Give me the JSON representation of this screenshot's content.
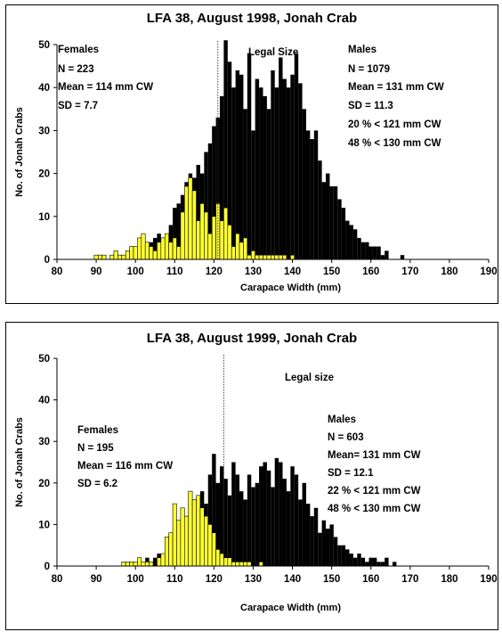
{
  "chart_data": [
    {
      "type": "bar",
      "title": "LFA 38, August 1998, Jonah Crab",
      "xlabel": "Carapace Width (mm)",
      "ylabel": "No. of Jonah Crabs",
      "xlim": [
        80,
        190
      ],
      "ylim": [
        0,
        50
      ],
      "xticks": [
        80,
        90,
        100,
        110,
        120,
        130,
        140,
        150,
        160,
        170,
        180,
        190
      ],
      "yticks": [
        0,
        10,
        20,
        30,
        40,
        50
      ],
      "legal_size_mm": 121,
      "legal_label": "Legal Size",
      "females_notes": [
        "Females",
        "N = 223",
        "Mean = 114 mm CW",
        "SD = 7.7"
      ],
      "males_notes": [
        "Males",
        "N = 1079",
        "Mean = 131 mm CW",
        "SD = 11.3",
        "20 % < 121 mm CW",
        "48 % < 130 mm CW"
      ],
      "series": [
        {
          "name": "Males",
          "color": "#000000",
          "x": [
            92,
            94,
            95,
            96,
            97,
            98,
            99,
            100,
            101,
            102,
            103,
            104,
            105,
            106,
            107,
            108,
            109,
            110,
            111,
            112,
            113,
            114,
            115,
            116,
            117,
            118,
            119,
            120,
            121,
            122,
            123,
            124,
            125,
            126,
            127,
            128,
            129,
            130,
            131,
            132,
            133,
            134,
            135,
            136,
            137,
            138,
            139,
            140,
            141,
            142,
            143,
            144,
            145,
            146,
            147,
            148,
            149,
            150,
            151,
            152,
            153,
            154,
            155,
            156,
            157,
            158,
            159,
            160,
            161,
            162,
            163,
            164,
            168
          ],
          "values": [
            1,
            1,
            2,
            1,
            1,
            1,
            2,
            2,
            2,
            3,
            3,
            4,
            5,
            6,
            5,
            6,
            8,
            12,
            13,
            15,
            18,
            20,
            19,
            22,
            20,
            25,
            27,
            31,
            33,
            38,
            51,
            46,
            40,
            44,
            43,
            35,
            48,
            30,
            42,
            40,
            38,
            35,
            44,
            40,
            47,
            42,
            40,
            43,
            48,
            41,
            35,
            30,
            28,
            30,
            23,
            18,
            20,
            17,
            17,
            14,
            12,
            9,
            8,
            7,
            5,
            4,
            4,
            3,
            3,
            3,
            1,
            2,
            1
          ]
        },
        {
          "name": "Females",
          "color": "#ffff33",
          "x": [
            90,
            91,
            92,
            94,
            95,
            96,
            97,
            98,
            99,
            100,
            101,
            102,
            103,
            104,
            105,
            106,
            107,
            108,
            109,
            110,
            111,
            112,
            113,
            114,
            115,
            116,
            117,
            118,
            119,
            120,
            121,
            122,
            123,
            124,
            125,
            126,
            127,
            128,
            129,
            130,
            131,
            132,
            133,
            134,
            135,
            136,
            137,
            138,
            140
          ],
          "values": [
            1,
            1,
            1,
            1,
            2,
            1,
            1,
            2,
            3,
            3,
            5,
            6,
            4,
            3,
            2,
            4,
            5,
            6,
            4,
            5,
            3,
            11,
            17,
            19,
            16,
            9,
            13,
            11,
            6,
            10,
            13,
            9,
            12,
            8,
            3,
            6,
            4,
            5,
            1,
            2,
            1,
            1,
            1,
            1,
            1,
            1,
            1,
            1,
            1
          ]
        }
      ]
    },
    {
      "type": "bar",
      "title": "LFA 38, August 1999, Jonah Crab",
      "xlabel": "Carapace Width (mm)",
      "ylabel": "No. of Jonah Crabs",
      "xlim": [
        80,
        190
      ],
      "ylim": [
        0,
        50
      ],
      "xticks": [
        80,
        90,
        100,
        110,
        120,
        130,
        140,
        150,
        160,
        170,
        180,
        190
      ],
      "yticks": [
        0,
        10,
        20,
        30,
        40,
        50
      ],
      "legal_size_mm": 122.5,
      "legal_label": "Legal size",
      "females_notes": [
        "Females",
        "N = 195",
        "Mean = 116 mm CW",
        "SD = 6.2"
      ],
      "males_notes": [
        "Males",
        "N = 603",
        "Mean= 131 mm CW",
        "SD = 12.1",
        "22 % < 121 mm CW",
        "48 % < 130 mm CW"
      ],
      "series": [
        {
          "name": "Males",
          "color": "#000000",
          "x": [
            97,
            99,
            101,
            102,
            103,
            104,
            105,
            106,
            107,
            108,
            109,
            110,
            111,
            112,
            113,
            114,
            115,
            116,
            117,
            118,
            119,
            120,
            121,
            122,
            123,
            124,
            125,
            126,
            127,
            128,
            129,
            130,
            131,
            132,
            133,
            134,
            135,
            136,
            137,
            138,
            139,
            140,
            141,
            142,
            143,
            144,
            145,
            146,
            147,
            148,
            149,
            150,
            151,
            152,
            153,
            154,
            155,
            156,
            157,
            158,
            159,
            160,
            161,
            162,
            163,
            164,
            166
          ],
          "values": [
            1,
            1,
            1,
            1,
            2,
            1,
            2,
            3,
            2,
            4,
            3,
            4,
            9,
            11,
            12,
            13,
            14,
            16,
            18,
            15,
            22,
            27,
            20,
            24,
            21,
            17,
            25,
            22,
            18,
            16,
            22,
            19,
            20,
            24,
            25,
            23,
            19,
            26,
            25,
            21,
            18,
            24,
            22,
            16,
            20,
            15,
            12,
            14,
            8,
            11,
            9,
            10,
            7,
            5,
            5,
            4,
            3,
            2,
            3,
            2,
            1,
            2,
            2,
            1,
            1,
            2,
            1
          ]
        },
        {
          "name": "Females",
          "color": "#ffff33",
          "x": [
            97,
            98,
            99,
            100,
            101,
            102,
            103,
            104,
            106,
            107,
            108,
            109,
            110,
            111,
            112,
            113,
            114,
            115,
            116,
            117,
            118,
            119,
            120,
            121,
            122,
            123,
            124,
            125,
            126,
            127,
            128,
            129,
            132
          ],
          "values": [
            1,
            1,
            1,
            1,
            2,
            1,
            1,
            1,
            2,
            3,
            7,
            8,
            15,
            11,
            14,
            12,
            18,
            16,
            17,
            14,
            12,
            10,
            8,
            4,
            3,
            2,
            2,
            1,
            1,
            1,
            1,
            1,
            1
          ]
        }
      ]
    }
  ]
}
